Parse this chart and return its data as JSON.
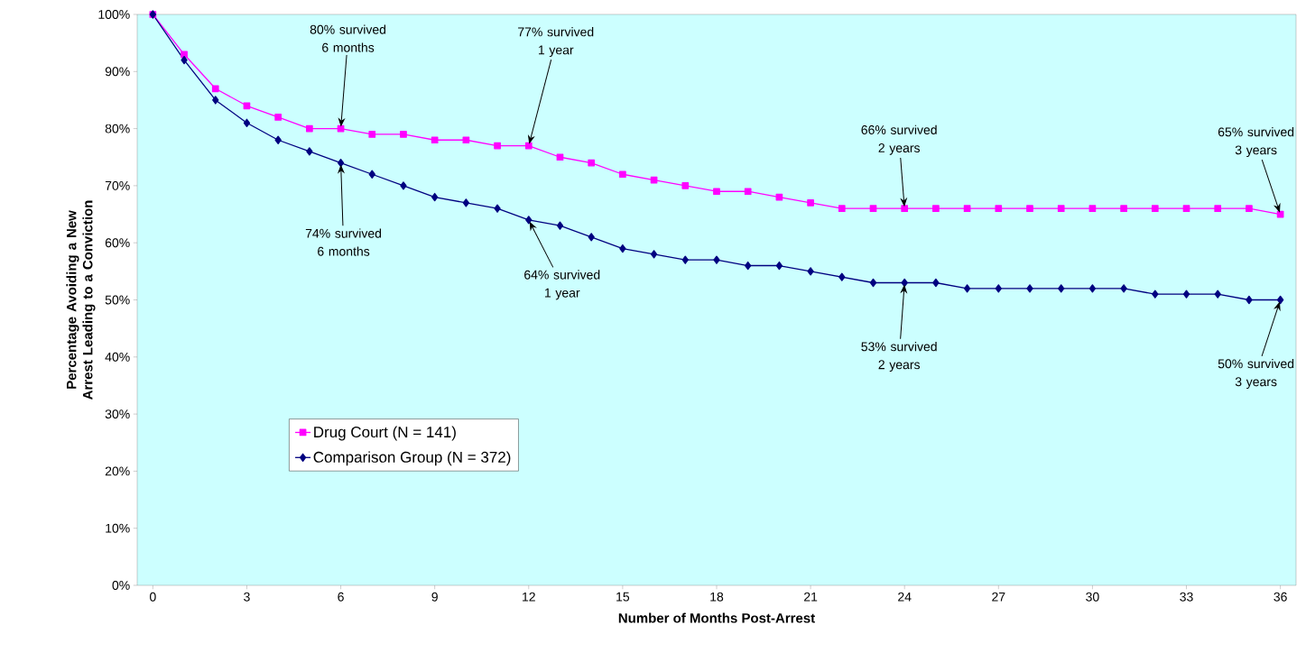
{
  "chart_data": {
    "type": "line",
    "xlabel": "Number of Months Post-Arrest",
    "ylabel": "Percentage Avoiding a New Arrest Leading to a Conviction",
    "x": [
      0,
      1,
      2,
      3,
      4,
      5,
      6,
      7,
      8,
      9,
      10,
      11,
      12,
      13,
      14,
      15,
      16,
      17,
      18,
      19,
      20,
      21,
      22,
      23,
      24,
      25,
      26,
      27,
      28,
      29,
      30,
      31,
      32,
      33,
      34,
      35,
      36
    ],
    "series": [
      {
        "name": "Drug Court (N = 141)",
        "color": "#ff00ff",
        "marker": "square",
        "values": [
          100,
          93,
          87,
          84,
          82,
          80,
          80,
          79,
          79,
          78,
          78,
          77,
          77,
          75,
          74,
          72,
          71,
          70,
          69,
          69,
          68,
          67,
          66,
          66,
          66,
          66,
          66,
          66,
          66,
          66,
          66,
          66,
          66,
          66,
          66,
          66,
          65
        ]
      },
      {
        "name": "Comparison Group (N = 372)",
        "color": "#000080",
        "marker": "diamond",
        "values": [
          100,
          92,
          85,
          81,
          78,
          76,
          74,
          72,
          70,
          68,
          67,
          66,
          64,
          63,
          61,
          59,
          58,
          57,
          57,
          56,
          56,
          55,
          54,
          53,
          53,
          53,
          52,
          52,
          52,
          52,
          52,
          52,
          51,
          51,
          51,
          50,
          50
        ]
      }
    ],
    "xlim": [
      -0.5,
      36.5
    ],
    "xticks": [
      0,
      3,
      6,
      9,
      12,
      15,
      18,
      21,
      24,
      27,
      30,
      33,
      36
    ],
    "ylim": [
      0,
      100
    ],
    "yticks": [
      {
        "value": 0,
        "label": "0%"
      },
      {
        "value": 10,
        "label": "10%"
      },
      {
        "value": 20,
        "label": "20%"
      },
      {
        "value": 30,
        "label": "30%"
      },
      {
        "value": 40,
        "label": "40%"
      },
      {
        "value": 50,
        "label": "50%"
      },
      {
        "value": 60,
        "label": "60%"
      },
      {
        "value": 70,
        "label": "70%"
      },
      {
        "value": 80,
        "label": "80%"
      },
      {
        "value": 90,
        "label": "90%"
      },
      {
        "value": 100,
        "label": "100%"
      }
    ],
    "grid": false,
    "legend": "bottom left",
    "line_style": "solid",
    "annotations": [
      {
        "text": "80% survived 6 months",
        "x": 6,
        "y": 80
      },
      {
        "text": "77% survived 1 year",
        "x": 12,
        "y": 77
      },
      {
        "text": "66% survived 2 years",
        "x": 24,
        "y": 66
      },
      {
        "text": "65% survived 3 years",
        "x": 36,
        "y": 65
      },
      {
        "text": "74% survived 6 months",
        "x": 6,
        "y": 74
      },
      {
        "text": "64% survived 1 year",
        "x": 12,
        "y": 64
      },
      {
        "text": "53% survived 2 years",
        "x": 24,
        "y": 53
      },
      {
        "text": "50% survived 3 years",
        "x": 36,
        "y": 50
      }
    ]
  }
}
